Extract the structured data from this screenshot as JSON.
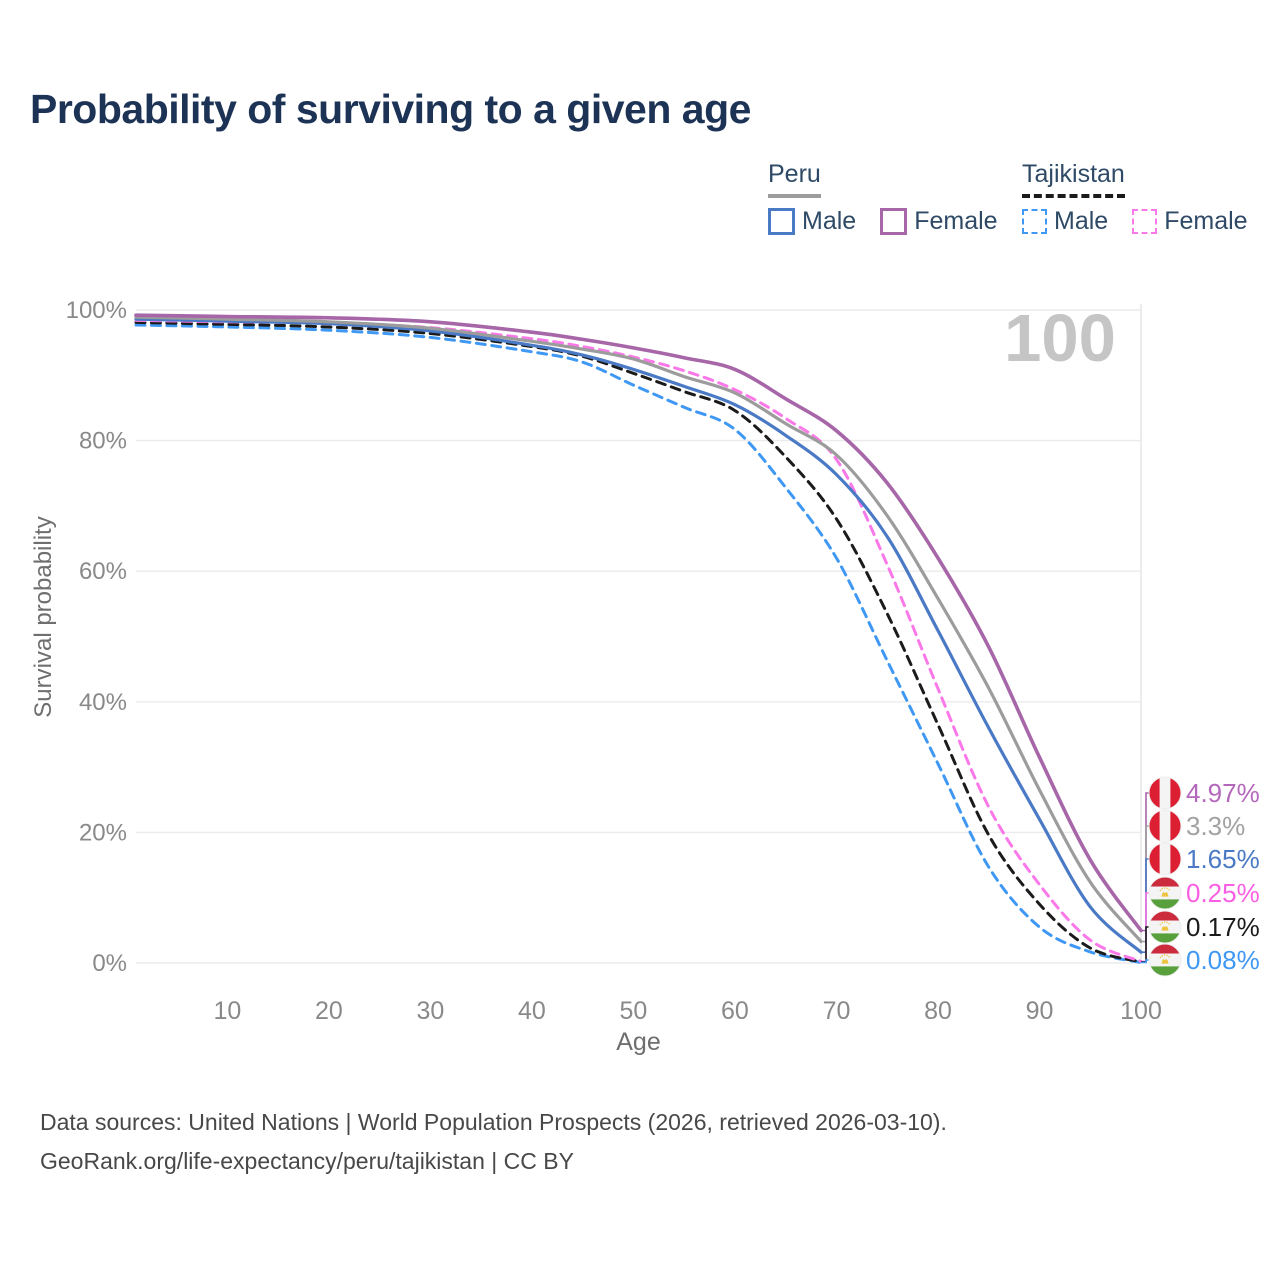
{
  "header": {
    "title": "Probability of surviving to a given age"
  },
  "watermark": "100",
  "legend": {
    "groups": [
      {
        "label": "Peru",
        "underline_style": "solid",
        "series_ref": "Peru — Both sexes",
        "items": [
          {
            "label": "Male",
            "series_ref": "Peru — Male"
          },
          {
            "label": "Female",
            "series_ref": "Peru — Female"
          }
        ]
      },
      {
        "label": "Tajikistan",
        "underline_style": "dashed",
        "series_ref": "Tajikistan — Both sexes",
        "items": [
          {
            "label": "Male",
            "series_ref": "Tajikistan — Male"
          },
          {
            "label": "Female",
            "series_ref": "Tajikistan — Female"
          }
        ]
      }
    ]
  },
  "chart_data": {
    "type": "line",
    "title": "Probability of surviving to a given age",
    "xlabel": "Age",
    "ylabel": "Survival probability",
    "xlim": [
      1,
      100
    ],
    "ylim": [
      0,
      100
    ],
    "x_ticks": [
      10,
      20,
      30,
      40,
      50,
      60,
      70,
      80,
      90,
      100
    ],
    "y_ticks": [
      "0%",
      "20%",
      "40%",
      "60%",
      "80%",
      "100%"
    ],
    "grid": "horizontal",
    "legend_position": "top-right",
    "ages": [
      1,
      10,
      20,
      30,
      40,
      45,
      50,
      55,
      60,
      65,
      70,
      75,
      80,
      85,
      90,
      95,
      100
    ],
    "series": [
      {
        "name": "Peru — Female",
        "country": "Peru",
        "sex": "Female",
        "style": "solid",
        "color": "#a666a8",
        "label_color": "#b468bb",
        "end_label": "4.97%",
        "end_value": 4.97,
        "values": [
          99.2,
          99.0,
          98.8,
          98.2,
          96.6,
          95.5,
          94.2,
          92.7,
          90.9,
          86.4,
          81.5,
          73.5,
          62.0,
          48.4,
          31.5,
          15.8,
          4.97
        ]
      },
      {
        "name": "Peru — Both sexes",
        "country": "Peru",
        "sex": "Both",
        "style": "solid",
        "color": "#9c9c9c",
        "label_color": "#a2a2a2",
        "end_label": "3.3%",
        "end_value": 3.3,
        "values": [
          98.9,
          98.6,
          98.2,
          97.2,
          95.2,
          94.0,
          92.5,
          89.8,
          87.3,
          82.6,
          77.8,
          68.5,
          55.8,
          42.1,
          26.5,
          12.4,
          3.3
        ]
      },
      {
        "name": "Peru — Male",
        "country": "Peru",
        "sex": "Male",
        "style": "solid",
        "color": "#4a79c5",
        "label_color": "#4a79c5",
        "end_label": "1.65%",
        "end_value": 1.65,
        "values": [
          98.6,
          98.3,
          97.9,
          96.8,
          94.6,
          93.1,
          90.9,
          88.3,
          85.5,
          80.8,
          74.8,
          65.3,
          50.9,
          36.0,
          22.0,
          8.6,
          1.65
        ]
      },
      {
        "name": "Tajikistan — Female",
        "country": "Tajikistan",
        "sex": "Female",
        "style": "dashed",
        "color": "#fa78e8",
        "label_color": "#fa5fe3",
        "end_label": "0.25%",
        "end_value": 0.25,
        "values": [
          98.4,
          98.2,
          98.0,
          97.3,
          95.6,
          94.4,
          92.8,
          90.7,
          87.8,
          83.4,
          77.1,
          61.0,
          42.0,
          23.9,
          12.0,
          3.5,
          0.25
        ]
      },
      {
        "name": "Tajikistan — Both sexes",
        "country": "Tajikistan",
        "sex": "Both",
        "style": "dashed",
        "color": "#1b1b1b",
        "label_color": "#1b1b1b",
        "end_label": "0.17%",
        "end_value": 0.17,
        "values": [
          98.1,
          97.8,
          97.4,
          96.4,
          94.4,
          92.9,
          90.3,
          87.5,
          84.6,
          77.5,
          68.0,
          53.5,
          36.5,
          19.6,
          9.0,
          2.3,
          0.17
        ]
      },
      {
        "name": "Tajikistan — Male",
        "country": "Tajikistan",
        "sex": "Male",
        "style": "dashed",
        "color": "#3f98f4",
        "label_color": "#3f98f4",
        "end_label": "0.08%",
        "end_value": 0.08,
        "values": [
          97.7,
          97.4,
          96.9,
          95.8,
          93.6,
          92.0,
          88.5,
          85.1,
          81.7,
          72.8,
          62.0,
          46.3,
          30.5,
          14.7,
          5.5,
          1.7,
          0.08
        ]
      }
    ],
    "flag_colors": {
      "peru_red": "#dc1f33",
      "tajikistan_red": "#cc2b3d",
      "tajikistan_green": "#58a03c",
      "tajikistan_gold": "#eec43f",
      "white": "#f4f4f4"
    }
  },
  "footer": {
    "line1": "Data sources: United Nations | World Population Prospects (2026, retrieved 2026-03-10).",
    "line2": "GeoRank.org/life-expectancy/peru/tajikistan | CC BY"
  }
}
